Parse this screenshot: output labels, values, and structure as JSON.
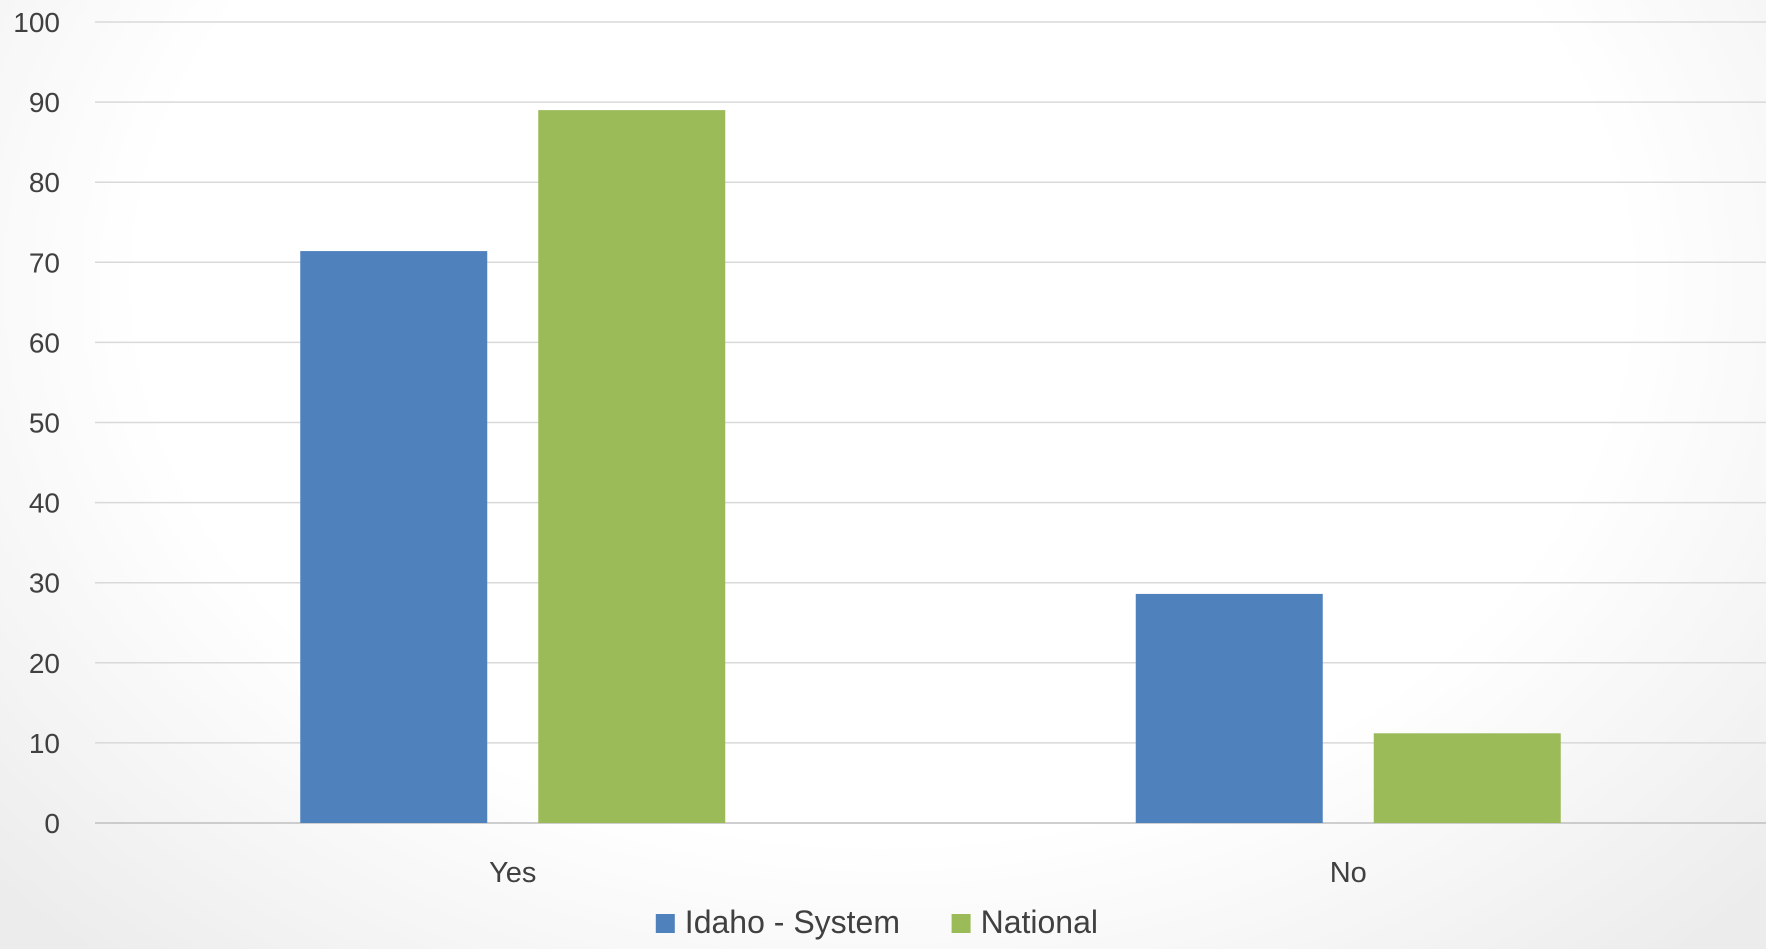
{
  "chart_data": {
    "type": "bar",
    "categories": [
      "Yes",
      "No"
    ],
    "series": [
      {
        "name": "Idaho - System",
        "values": [
          71.4,
          28.6
        ],
        "color": "#4f81bd"
      },
      {
        "name": "National",
        "values": [
          89,
          11.2
        ],
        "color": "#9bbb59"
      }
    ],
    "title": "",
    "xlabel": "",
    "ylabel": "",
    "ylim": [
      0,
      100
    ],
    "yticks": [
      "0",
      "10",
      "20",
      "30",
      "40",
      "50",
      "60",
      "70",
      "80",
      "90",
      "100"
    ],
    "grid": true,
    "legend": "bottom-center"
  }
}
